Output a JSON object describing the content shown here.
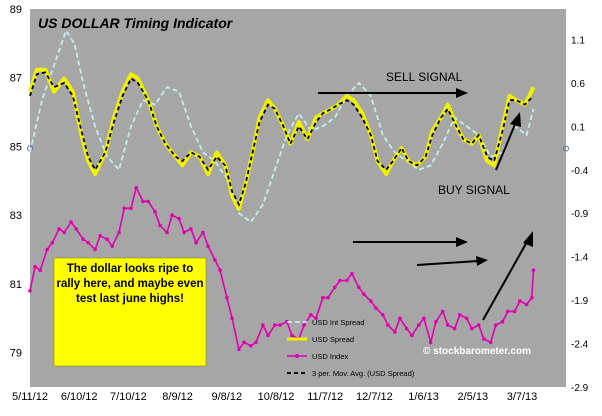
{
  "chart_data": {
    "type": "line",
    "title": "US DOLLAR Timing Indicator",
    "x_tick_labels": [
      "5/11/12",
      "6/10/12",
      "7/10/12",
      "8/9/12",
      "9/8/12",
      "10/8/12",
      "11/7/12",
      "12/7/12",
      "1/6/13",
      "2/5/13",
      "3/7/13"
    ],
    "x_range": [
      "2012-05-11",
      "2013-03-20"
    ],
    "left_axis": {
      "ticks": [
        "79",
        "81",
        "83",
        "85",
        "87",
        "89"
      ],
      "ylim": [
        78,
        89
      ]
    },
    "right_axis": {
      "ticks": [
        "-2.9",
        "-2.4",
        "-1.9",
        "-1.4",
        "-0.9",
        "-0.4",
        "0.1",
        "0.6",
        "1.1"
      ],
      "ylim": [
        -2.9,
        1.45
      ]
    },
    "grid": false,
    "legend_position": "bottom-center",
    "series": [
      {
        "name": "USD Int Spread",
        "axis": "right",
        "color": "#bff0f0",
        "style": "dashed",
        "x": [
          "2012-05-11",
          "2012-05-18",
          "2012-05-25",
          "2012-06-01",
          "2012-06-06",
          "2012-06-11",
          "2012-06-18",
          "2012-06-25",
          "2012-07-02",
          "2012-07-09",
          "2012-07-16",
          "2012-07-23",
          "2012-07-30",
          "2012-08-06",
          "2012-08-13",
          "2012-08-20",
          "2012-08-27",
          "2012-09-03",
          "2012-09-10",
          "2012-09-17",
          "2012-09-24",
          "2012-10-01",
          "2012-10-08",
          "2012-10-15",
          "2012-10-22",
          "2012-10-29",
          "2012-11-05",
          "2012-11-12",
          "2012-11-19",
          "2012-11-26",
          "2012-12-03",
          "2012-12-10",
          "2012-12-17",
          "2012-12-24",
          "2012-12-31",
          "2013-01-07",
          "2013-01-14",
          "2013-01-21",
          "2013-01-28",
          "2013-02-04",
          "2013-02-11",
          "2013-02-18",
          "2013-02-25",
          "2013-03-01"
        ],
        "values": [
          -0.2,
          0.4,
          0.8,
          1.2,
          1.05,
          0.6,
          0.1,
          -0.25,
          -0.4,
          0.1,
          0.4,
          0.35,
          0.55,
          0.5,
          0.1,
          -0.2,
          -0.3,
          -0.5,
          -0.9,
          -1.0,
          -0.8,
          -0.4,
          0.0,
          0.25,
          0.05,
          0.1,
          0.2,
          0.45,
          0.6,
          0.45,
          0.0,
          -0.2,
          -0.3,
          -0.4,
          -0.35,
          -0.1,
          0.2,
          0.1,
          0.0,
          -0.25,
          -0.2,
          0.1,
          0.0,
          0.3
        ]
      },
      {
        "name": "USD Spread",
        "axis": "right",
        "color": "#f0f000",
        "style": "solid",
        "x": [
          "2012-05-11",
          "2012-05-15",
          "2012-05-20",
          "2012-05-25",
          "2012-05-31",
          "2012-06-05",
          "2012-06-10",
          "2012-06-14",
          "2012-06-18",
          "2012-06-24",
          "2012-06-29",
          "2012-07-04",
          "2012-07-09",
          "2012-07-13",
          "2012-07-19",
          "2012-07-24",
          "2012-07-29",
          "2012-08-04",
          "2012-08-08",
          "2012-08-13",
          "2012-08-18",
          "2012-08-23",
          "2012-08-28",
          "2012-09-02",
          "2012-09-06",
          "2012-09-10",
          "2012-09-14",
          "2012-09-18",
          "2012-09-22",
          "2012-09-27",
          "2012-10-01",
          "2012-10-06",
          "2012-10-10",
          "2012-10-15",
          "2012-10-20",
          "2012-10-25",
          "2012-10-29",
          "2012-11-03",
          "2012-11-07",
          "2012-11-12",
          "2012-11-16",
          "2012-11-21",
          "2012-11-26",
          "2012-11-30",
          "2012-12-05",
          "2012-12-09",
          "2012-12-14",
          "2012-12-18",
          "2012-12-23",
          "2012-12-28",
          "2013-01-01",
          "2013-01-06",
          "2013-01-10",
          "2013-01-15",
          "2013-01-19",
          "2013-01-24",
          "2013-01-28",
          "2013-02-02",
          "2013-02-06",
          "2013-02-11",
          "2013-02-15",
          "2013-02-19",
          "2013-02-24",
          "2013-03-01"
        ],
        "values": [
          0.5,
          0.75,
          0.75,
          0.5,
          0.65,
          0.5,
          0.0,
          -0.3,
          -0.45,
          -0.2,
          0.2,
          0.5,
          0.7,
          0.65,
          0.4,
          0.1,
          -0.1,
          -0.25,
          -0.35,
          -0.2,
          -0.25,
          -0.45,
          -0.2,
          -0.35,
          -0.7,
          -0.85,
          -0.55,
          -0.2,
          0.2,
          0.4,
          0.3,
          0.1,
          -0.1,
          0.15,
          -0.05,
          0.2,
          0.25,
          0.3,
          0.35,
          0.45,
          0.4,
          0.25,
          0.0,
          -0.3,
          -0.45,
          -0.3,
          -0.15,
          -0.3,
          -0.35,
          -0.25,
          0.05,
          0.2,
          0.35,
          0.1,
          -0.05,
          -0.1,
          0.0,
          -0.3,
          -0.35,
          0.1,
          0.45,
          0.4,
          0.35,
          0.55
        ]
      },
      {
        "name": "USD Index",
        "axis": "left",
        "color": "#e000b0",
        "style": "solid-markers",
        "x": [
          "2012-05-11",
          "2012-05-14",
          "2012-05-17",
          "2012-05-21",
          "2012-05-24",
          "2012-05-28",
          "2012-05-31",
          "2012-06-04",
          "2012-06-07",
          "2012-06-11",
          "2012-06-14",
          "2012-06-18",
          "2012-06-21",
          "2012-06-25",
          "2012-06-28",
          "2012-07-02",
          "2012-07-05",
          "2012-07-09",
          "2012-07-12",
          "2012-07-16",
          "2012-07-19",
          "2012-07-23",
          "2012-07-26",
          "2012-07-30",
          "2012-08-02",
          "2012-08-06",
          "2012-08-09",
          "2012-08-13",
          "2012-08-16",
          "2012-08-20",
          "2012-08-23",
          "2012-08-27",
          "2012-08-30",
          "2012-09-03",
          "2012-09-06",
          "2012-09-10",
          "2012-09-13",
          "2012-09-17",
          "2012-09-20",
          "2012-09-24",
          "2012-09-27",
          "2012-10-01",
          "2012-10-04",
          "2012-10-08",
          "2012-10-11",
          "2012-10-15",
          "2012-10-18",
          "2012-10-22",
          "2012-10-25",
          "2012-10-29",
          "2012-11-01",
          "2012-11-05",
          "2012-11-08",
          "2012-11-12",
          "2012-11-15",
          "2012-11-19",
          "2012-11-22",
          "2012-11-26",
          "2012-11-29",
          "2012-12-03",
          "2012-12-06",
          "2012-12-10",
          "2012-12-13",
          "2012-12-17",
          "2012-12-20",
          "2012-12-24",
          "2012-12-27",
          "2012-12-31",
          "2013-01-03",
          "2013-01-07",
          "2013-01-10",
          "2013-01-14",
          "2013-01-17",
          "2013-01-21",
          "2013-01-24",
          "2013-01-28",
          "2013-01-31",
          "2013-02-04",
          "2013-02-07",
          "2013-02-11",
          "2013-02-14",
          "2013-02-18",
          "2013-02-21",
          "2013-02-25",
          "2013-02-28",
          "2013-03-01"
        ],
        "values": [
          80.8,
          81.5,
          81.4,
          82.0,
          82.2,
          82.6,
          82.5,
          82.8,
          82.6,
          82.3,
          82.2,
          82.0,
          82.4,
          82.3,
          82.1,
          82.5,
          83.2,
          83.2,
          83.8,
          83.4,
          83.4,
          83.1,
          82.7,
          82.5,
          83.0,
          82.9,
          82.5,
          82.6,
          82.2,
          82.5,
          82.1,
          81.7,
          81.4,
          80.6,
          80.0,
          79.1,
          79.3,
          79.2,
          79.3,
          79.8,
          79.5,
          79.8,
          79.8,
          79.9,
          79.5,
          79.4,
          79.8,
          80.1,
          80.0,
          80.6,
          80.6,
          80.9,
          81.1,
          81.1,
          81.3,
          80.9,
          80.7,
          80.5,
          80.3,
          80.1,
          79.8,
          79.6,
          80.0,
          79.7,
          79.5,
          79.8,
          80.0,
          79.3,
          79.9,
          80.2,
          79.8,
          79.7,
          80.1,
          80.0,
          79.7,
          79.8,
          79.4,
          79.3,
          79.8,
          79.9,
          80.2,
          80.2,
          80.5,
          80.4,
          80.6,
          81.4
        ]
      },
      {
        "name": "3 per. Mov. Avg. (USD Spread)",
        "axis": "right",
        "color": "#000000",
        "style": "dashed",
        "x": [
          "2012-05-11",
          "2012-05-15",
          "2012-05-20",
          "2012-05-25",
          "2012-05-31",
          "2012-06-05",
          "2012-06-10",
          "2012-06-14",
          "2012-06-18",
          "2012-06-24",
          "2012-06-29",
          "2012-07-04",
          "2012-07-09",
          "2012-07-13",
          "2012-07-19",
          "2012-07-24",
          "2012-07-29",
          "2012-08-04",
          "2012-08-08",
          "2012-08-13",
          "2012-08-18",
          "2012-08-23",
          "2012-08-28",
          "2012-09-02",
          "2012-09-06",
          "2012-09-10",
          "2012-09-14",
          "2012-09-18",
          "2012-09-22",
          "2012-09-27",
          "2012-10-01",
          "2012-10-06",
          "2012-10-10",
          "2012-10-15",
          "2012-10-20",
          "2012-10-25",
          "2012-10-29",
          "2012-11-03",
          "2012-11-07",
          "2012-11-12",
          "2012-11-16",
          "2012-11-21",
          "2012-11-26",
          "2012-11-30",
          "2012-12-05",
          "2012-12-09",
          "2012-12-14",
          "2012-12-18",
          "2012-12-23",
          "2012-12-28",
          "2013-01-01",
          "2013-01-06",
          "2013-01-10",
          "2013-01-15",
          "2013-01-19",
          "2013-01-24",
          "2013-01-28",
          "2013-02-02",
          "2013-02-06",
          "2013-02-11",
          "2013-02-15",
          "2013-02-19",
          "2013-02-24",
          "2013-03-01"
        ],
        "values": [
          0.45,
          0.7,
          0.72,
          0.55,
          0.6,
          0.45,
          0.05,
          -0.25,
          -0.4,
          -0.2,
          0.15,
          0.45,
          0.65,
          0.6,
          0.4,
          0.1,
          -0.1,
          -0.25,
          -0.3,
          -0.2,
          -0.25,
          -0.4,
          -0.25,
          -0.35,
          -0.65,
          -0.8,
          -0.55,
          -0.2,
          0.15,
          0.35,
          0.3,
          0.1,
          -0.1,
          0.1,
          -0.05,
          0.15,
          0.25,
          0.3,
          0.35,
          0.4,
          0.35,
          0.2,
          0.0,
          -0.3,
          -0.4,
          -0.3,
          -0.15,
          -0.3,
          -0.35,
          -0.25,
          0.0,
          0.2,
          0.3,
          0.1,
          -0.05,
          -0.1,
          0.0,
          -0.25,
          -0.3,
          0.05,
          0.4,
          0.4,
          0.35,
          0.45
        ]
      }
    ],
    "annotations": {
      "sell_signal": "SELL  SIGNAL",
      "buy_signal": "BUY  SIGNAL",
      "note": "The dollar looks ripe to rally here, and maybe even test last june highs!",
      "watermark": "© stockbarometer.com"
    },
    "colors": {
      "plot_background": "#a6a6a6",
      "note_background": "#ffff00"
    }
  }
}
